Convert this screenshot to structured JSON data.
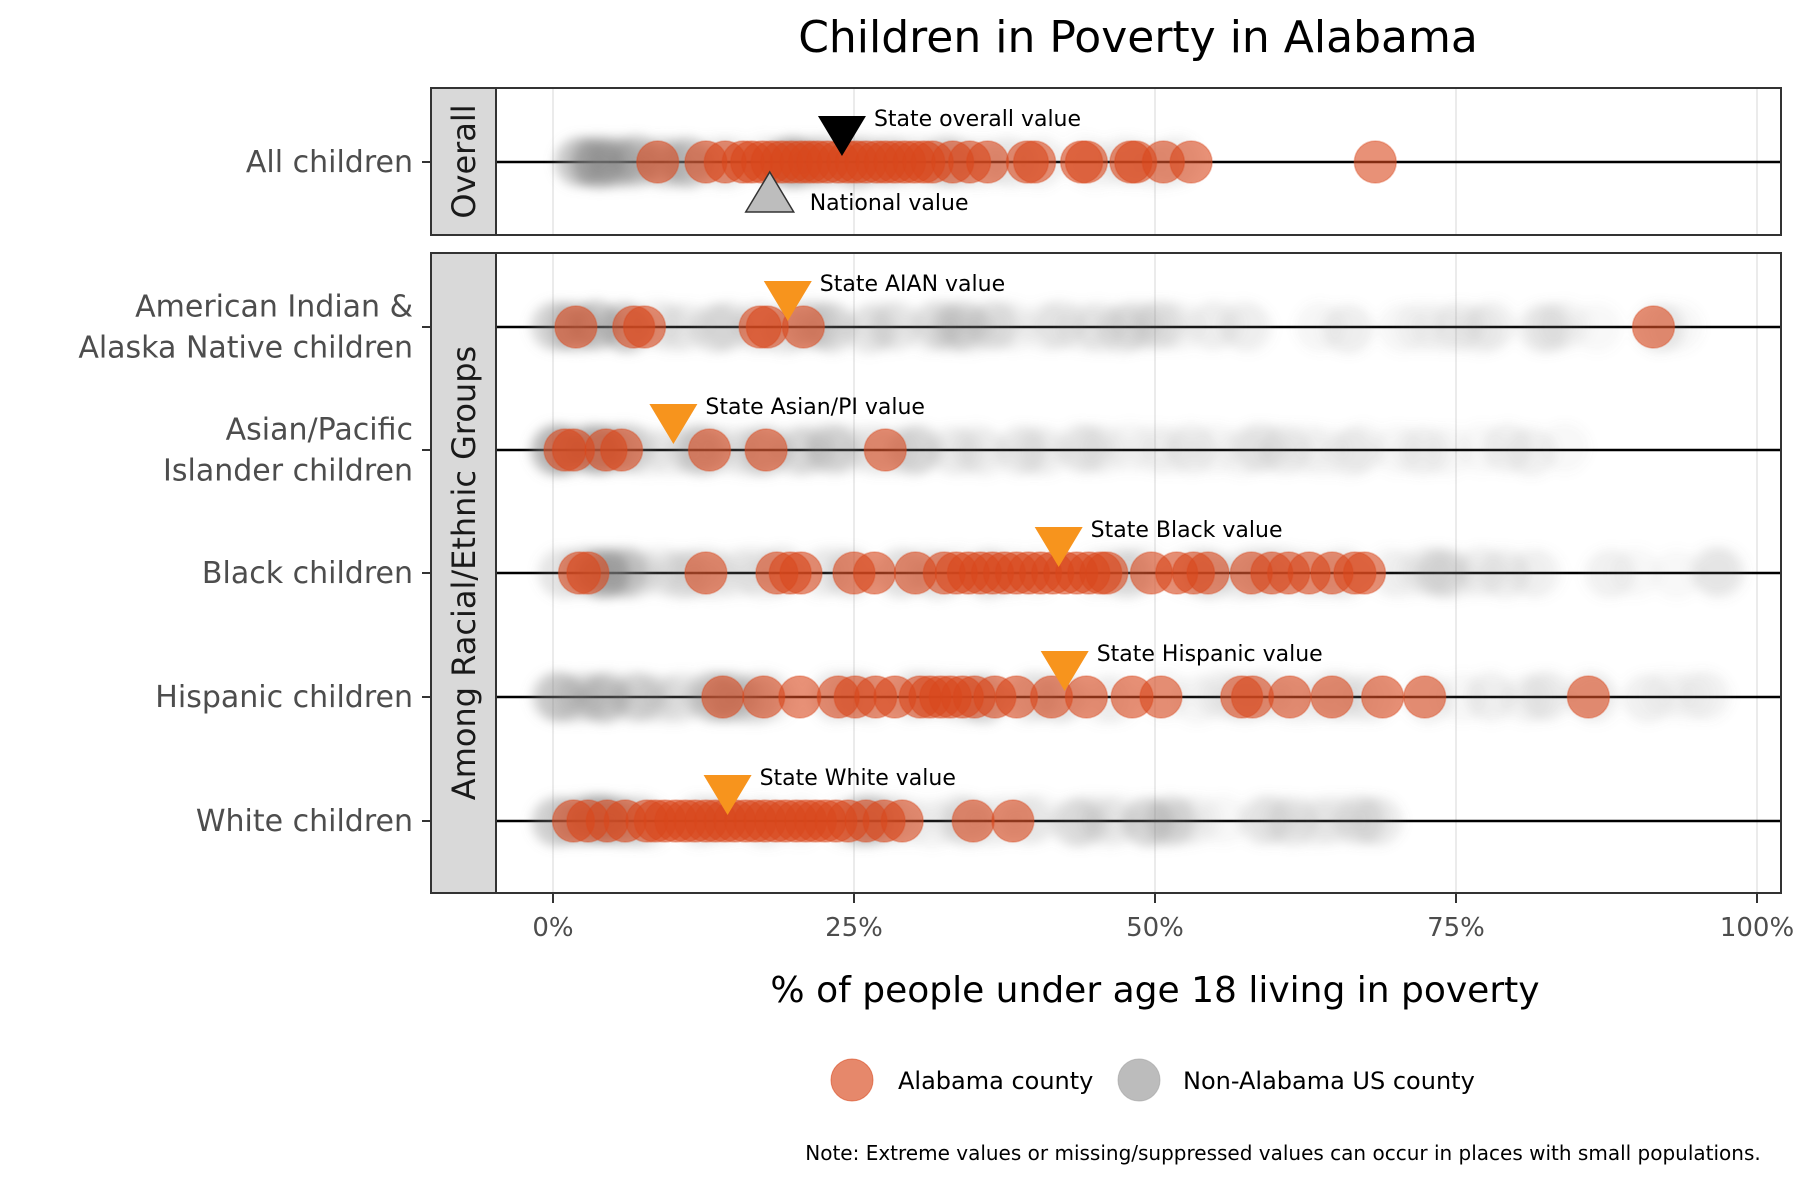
{
  "chart_data": {
    "type": "scatter",
    "title": "Children in Poverty in Alabama",
    "xlabel": "% of people under age 18 living in poverty",
    "ylabel": "",
    "xlim": [
      0,
      100
    ],
    "x_ticks": [
      0,
      25,
      50,
      75,
      100
    ],
    "x_tick_labels": [
      "0%",
      "25%",
      "50%",
      "75%",
      "100%"
    ],
    "grid": "vertical major gridlines",
    "legend": {
      "placement": "bottom",
      "items": [
        {
          "label": "Alabama county",
          "color": "#d9481c"
        },
        {
          "label": "Non-Alabama US county",
          "color": "#b0b0b0"
        }
      ]
    },
    "note": "Note: Extreme values or missing/suppressed values can occur in places with small populations.",
    "colors": {
      "alabama": "#d9481c",
      "non_alabama": "#7f7f7f",
      "state_overall_marker": "#000000",
      "national_marker": "#bdbdbd",
      "state_group_marker": "#f7941d"
    },
    "panels": [
      {
        "strip_label": "Overall",
        "rows": [
          {
            "label": "All children",
            "alabama_values": [
              8.7,
              12.7,
              14.3,
              15.8,
              16.5,
              17.4,
              18.2,
              19.0,
              19.8,
              20.6,
              21.3,
              22.0,
              22.8,
              23.7,
              24.5,
              25.2,
              26.0,
              26.9,
              27.6,
              28.4,
              29.2,
              30.0,
              30.8,
              31.5,
              33.2,
              34.6,
              36.1,
              39.4,
              40.0,
              43.9,
              44.3,
              48.0,
              48.4,
              50.7,
              53.0,
              68.3
            ],
            "non_alabama_range": [
              2,
              55
            ],
            "markers": [
              {
                "label": "State overall value",
                "value": 24,
                "shape": "triangle-down",
                "color": "#000000"
              },
              {
                "label": "National value",
                "value": 18,
                "shape": "triangle-up",
                "color": "#bdbdbd"
              }
            ]
          }
        ]
      },
      {
        "strip_label": "Among Racial/Ethnic Groups",
        "rows": [
          {
            "label": "American Indian & Alaska Native children",
            "alabama_values": [
              1.9,
              6.7,
              7.6,
              17.2,
              17.8,
              20.8,
              91.4
            ],
            "non_alabama_range": [
              0,
              97
            ],
            "markers": [
              {
                "label": "State AIAN value",
                "value": 19.5,
                "shape": "triangle-down",
                "color": "#f7941d"
              }
            ]
          },
          {
            "label": "Asian/Pacific Islander children",
            "alabama_values": [
              1.0,
              1.7,
              4.4,
              5.7,
              13.0,
              17.7,
              27.6
            ],
            "non_alabama_range": [
              0,
              85
            ],
            "markers": [
              {
                "label": "State Asian/PI value",
                "value": 10,
                "shape": "triangle-down",
                "color": "#f7941d"
              }
            ]
          },
          {
            "label": "Black children",
            "alabama_values": [
              2.2,
              2.9,
              12.7,
              18.6,
              19.7,
              20.6,
              25.0,
              26.7,
              30.1,
              32.5,
              33.5,
              34.5,
              35.5,
              36.5,
              37.5,
              38.5,
              39.5,
              40.5,
              41.5,
              42.5,
              43.5,
              44.5,
              45.5,
              46.0,
              49.7,
              51.8,
              53.2,
              54.4,
              58.0,
              59.7,
              61.1,
              62.8,
              64.7,
              66.6,
              67.4
            ],
            "non_alabama_range": [
              0,
              100
            ],
            "markers": [
              {
                "label": "State Black value",
                "value": 42,
                "shape": "triangle-down",
                "color": "#f7941d"
              }
            ]
          },
          {
            "label": "Hispanic children",
            "alabama_values": [
              14.1,
              17.5,
              20.5,
              23.7,
              25.1,
              26.8,
              28.4,
              30.5,
              31.3,
              32.2,
              33.0,
              34.0,
              35.0,
              36.7,
              38.5,
              41.4,
              44.3,
              48.1,
              50.5,
              57.2,
              58.1,
              61.2,
              64.7,
              68.9,
              72.4,
              86.0
            ],
            "non_alabama_range": [
              0,
              97
            ],
            "markers": [
              {
                "label": "State Hispanic value",
                "value": 42.5,
                "shape": "triangle-down",
                "color": "#f7941d"
              }
            ]
          },
          {
            "label": "White children",
            "alabama_values": [
              1.7,
              2.9,
              4.5,
              6.0,
              7.8,
              8.5,
              9.3,
              10.2,
              11.0,
              11.8,
              12.7,
              13.5,
              14.3,
              15.1,
              16.0,
              16.8,
              17.6,
              18.5,
              19.3,
              20.2,
              21.0,
              21.8,
              22.6,
              23.5,
              24.5,
              26.0,
              27.5,
              29.0,
              34.9,
              38.2
            ],
            "non_alabama_range": [
              0,
              70
            ],
            "markers": [
              {
                "label": "State White value",
                "value": 14.5,
                "shape": "triangle-down",
                "color": "#f7941d"
              }
            ]
          }
        ]
      }
    ]
  }
}
